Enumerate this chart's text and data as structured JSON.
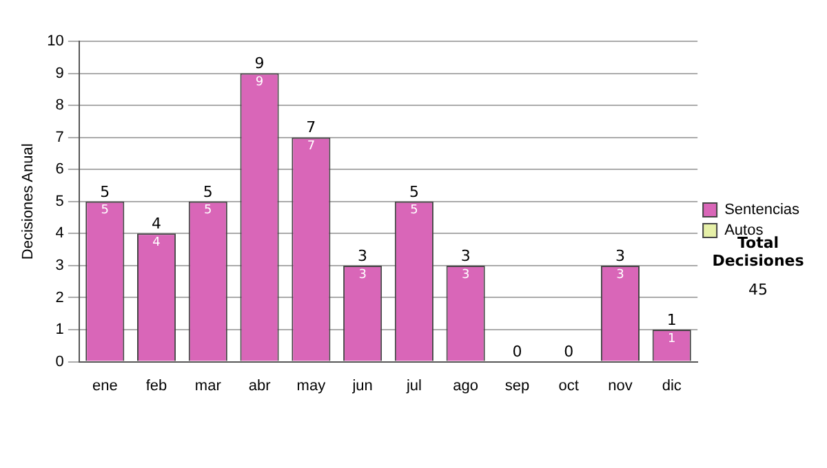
{
  "chart_data": {
    "type": "bar",
    "ylabel": "Decisiones Anual",
    "categories": [
      "ene",
      "feb",
      "mar",
      "abr",
      "may",
      "jun",
      "jul",
      "ago",
      "sep",
      "oct",
      "nov",
      "dic"
    ],
    "stacked": true,
    "ylim": [
      0,
      10
    ],
    "yticks": [
      0,
      1,
      2,
      3,
      4,
      5,
      6,
      7,
      8,
      9,
      10
    ],
    "grid": "y",
    "legend": "right",
    "series": [
      {
        "name": "Sentencias",
        "color": "#d966b8",
        "values": [
          5,
          4,
          5,
          9,
          7,
          3,
          5,
          3,
          0,
          0,
          3,
          1
        ],
        "value_labels": [
          "5",
          "4",
          "5",
          "9",
          "7",
          "3",
          "5",
          "3",
          null,
          null,
          "3",
          "1"
        ]
      },
      {
        "name": "Autos",
        "color": "#e6f0a8",
        "values": [
          0,
          0,
          0,
          0,
          0,
          0,
          0,
          0,
          0,
          0,
          0,
          0
        ]
      }
    ],
    "totals": [
      "5",
      "4",
      "5",
      "9",
      "7",
      "3",
      "5",
      "3",
      "0",
      "0",
      "3",
      "1"
    ],
    "annotations": [
      "Total Decisiones",
      "45"
    ]
  }
}
